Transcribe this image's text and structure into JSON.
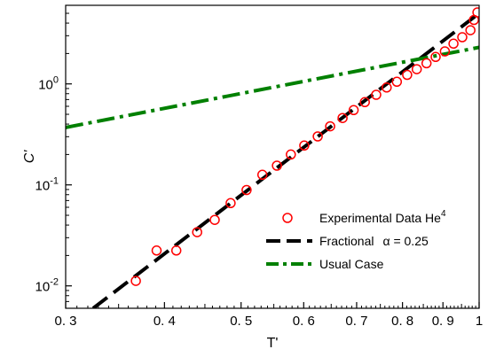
{
  "chart_data": {
    "type": "scatter",
    "xlabel": "T'",
    "ylabel": "C'",
    "x_scale": "log",
    "y_scale": "log",
    "xlim": [
      0.3,
      1.0
    ],
    "ylim": [
      0.006,
      6
    ],
    "x_ticks": [
      {
        "value": 0.3,
        "label": "0. 3"
      },
      {
        "value": 0.4,
        "label": "0. 4"
      },
      {
        "value": 0.5,
        "label": "0. 5"
      },
      {
        "value": 0.6,
        "label": "0. 6"
      },
      {
        "value": 0.7,
        "label": "0. 7"
      },
      {
        "value": 0.8,
        "label": "0. 8"
      },
      {
        "value": 0.9,
        "label": "0. 9"
      },
      {
        "value": 1.0,
        "label": "1"
      }
    ],
    "y_ticks": [
      {
        "value": 0.01,
        "base": "10",
        "exp": "-2"
      },
      {
        "value": 0.1,
        "base": "10",
        "exp": "-1"
      },
      {
        "value": 1,
        "base": "10",
        "exp": "0"
      }
    ],
    "legend_placement": "lower-right",
    "series": [
      {
        "name": "Experimental Data He",
        "name_sup": "4",
        "kind": "markers",
        "color": "#ff0000",
        "x": [
          0.368,
          0.391,
          0.414,
          0.44,
          0.463,
          0.485,
          0.508,
          0.532,
          0.555,
          0.578,
          0.601,
          0.625,
          0.648,
          0.672,
          0.694,
          0.717,
          0.741,
          0.764,
          0.787,
          0.811,
          0.834,
          0.858,
          0.881,
          0.905,
          0.928,
          0.952,
          0.975,
          0.985,
          0.995
        ],
        "y": [
          0.0112,
          0.0224,
          0.0224,
          0.034,
          0.045,
          0.066,
          0.089,
          0.126,
          0.155,
          0.2,
          0.245,
          0.302,
          0.38,
          0.46,
          0.55,
          0.66,
          0.78,
          0.92,
          1.05,
          1.23,
          1.4,
          1.6,
          1.85,
          2.1,
          2.5,
          2.9,
          3.4,
          4.3,
          5.1
        ]
      },
      {
        "name": "Fractional",
        "name_extra": "α = 0.25",
        "kind": "line",
        "style": "dashed",
        "color": "#000000",
        "x": [
          0.325,
          1.0
        ],
        "y": [
          0.006,
          5.0
        ]
      },
      {
        "name": "Usual Case",
        "kind": "line",
        "style": "dashdot",
        "color": "#008000",
        "x": [
          0.3,
          1.0
        ],
        "y": [
          0.37,
          2.3
        ]
      }
    ]
  }
}
